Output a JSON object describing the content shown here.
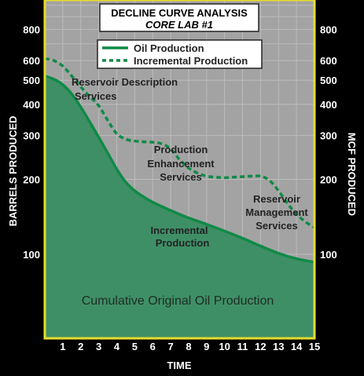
{
  "colors": {
    "background": "#000000",
    "plot_fill": "#a3a3a3",
    "grid": "#bcbcbc",
    "frame": "#e6dc2e",
    "oil_line": "#0f8a47",
    "cumulative_fill": "#3f8f66",
    "legend_bg": "#ffffff",
    "text_light": "#ffffff",
    "text_dark": "#222222"
  },
  "chart_data": {
    "type": "line",
    "title": "DECLINE CURVE ANALYSIS",
    "subtitle": "CORE LAB #1",
    "xlabel": "TIME",
    "ylabel_left": "BARRELS PRODUCED",
    "ylabel_right": "MCF PRODUCED",
    "x_ticks": [
      "1",
      "2",
      "3",
      "4",
      "5",
      "6",
      "7",
      "8",
      "9",
      "10",
      "11",
      "12",
      "13",
      "14",
      "15"
    ],
    "y_ticks": [
      100,
      200,
      300,
      400,
      500,
      600,
      800
    ],
    "y_tick_labels": [
      "100",
      "200",
      "300",
      "400",
      "500",
      "600",
      "800"
    ],
    "y_scale": "log",
    "xlim": [
      0,
      15
    ],
    "ylim": [
      46,
      1050
    ],
    "grid": true,
    "legend_position": "top-center",
    "series": [
      {
        "name": "Oil Production",
        "style": "solid",
        "x": [
          0,
          0.5,
          1,
          1.5,
          2,
          2.5,
          3,
          3.5,
          4,
          4.5,
          5,
          5.5,
          6,
          7,
          8,
          9,
          10,
          11,
          12,
          13,
          14,
          15
        ],
        "y": [
          520,
          505,
          480,
          440,
          390,
          340,
          295,
          255,
          220,
          195,
          180,
          170,
          162,
          150,
          140,
          132,
          124,
          116,
          108,
          101,
          96,
          93
        ]
      },
      {
        "name": "Incremental Production",
        "style": "dashed",
        "x": [
          0,
          0.5,
          1,
          1.5,
          2,
          2.5,
          3,
          3.5,
          4,
          4.5,
          5,
          5.5,
          6,
          6.5,
          7,
          7.5,
          8,
          8.5,
          9,
          9.5,
          10,
          10.5,
          11,
          11.5,
          12,
          12.5,
          13,
          13.5,
          14,
          14.5,
          15
        ],
        "y": [
          610,
          600,
          570,
          520,
          470,
          430,
          395,
          345,
          305,
          290,
          285,
          283,
          282,
          278,
          265,
          240,
          222,
          212,
          206,
          204,
          203,
          204,
          205,
          206,
          206,
          198,
          180,
          160,
          145,
          135,
          128
        ]
      }
    ],
    "annotations": [
      {
        "text": "Reservoir Description Services",
        "lines": [
          "Reservoir Description",
          "Services"
        ]
      },
      {
        "text": "Production Enhancement Services",
        "lines": [
          "Production",
          "Enhancement",
          "Services"
        ]
      },
      {
        "text": "Reservoir Management Services",
        "lines": [
          "Reservoir",
          "Management",
          "Services"
        ]
      },
      {
        "text": "Incremental Production",
        "lines": [
          "Incremental",
          "Production"
        ]
      },
      {
        "text": "Cumulative Original Oil Production",
        "lines": [
          "Cumulative Original Oil Production"
        ]
      }
    ]
  }
}
